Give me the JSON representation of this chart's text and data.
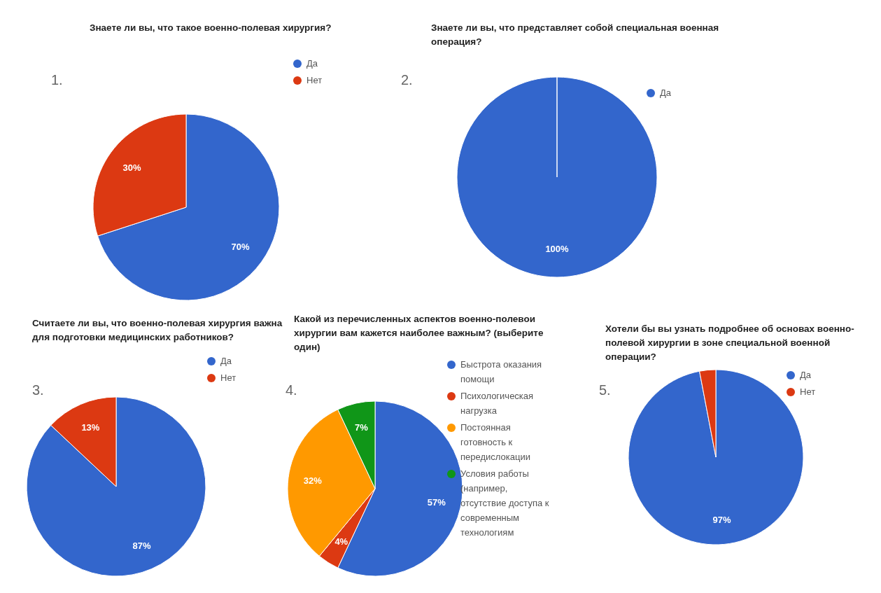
{
  "chart_data": [
    {
      "type": "pie",
      "title": "Знаете ли вы, что такое военно-полевая хирургия?",
      "annotations": [
        "1."
      ],
      "categories": [
        "Да",
        "Нет"
      ],
      "values": [
        70,
        30
      ],
      "colors": [
        "#3366cc",
        "#dc3912"
      ],
      "value_labels": [
        "70%",
        "30%"
      ],
      "legend": "right"
    },
    {
      "type": "pie",
      "title": "Знаете ли вы, что представляет собой специальная военная операция?",
      "annotations": [
        "2."
      ],
      "categories": [
        "Да"
      ],
      "values": [
        100
      ],
      "colors": [
        "#3366cc"
      ],
      "value_labels": [
        "100%"
      ],
      "legend": "right"
    },
    {
      "type": "pie",
      "title": "Считаете ли вы, что военно-полевая хирургия важна для подготовки медицинских работников?",
      "annotations": [
        "3."
      ],
      "categories": [
        "Да",
        "Нет"
      ],
      "values": [
        87,
        13
      ],
      "colors": [
        "#3366cc",
        "#dc3912"
      ],
      "value_labels": [
        "87%",
        "13%"
      ],
      "legend": "right"
    },
    {
      "type": "pie",
      "title": "Какой из перечисленных аспектов военно-полевои хирургии вам кажется наиболее важным? (выберите один)",
      "annotations": [
        "4."
      ],
      "categories": [
        "Быстрота оказания помощи",
        "Психологическая нагрузка",
        "Постоянная готовность к передислокации",
        "Условия работы (например, отсутствие доступа к современным технологиям"
      ],
      "values": [
        57,
        4,
        32,
        7
      ],
      "colors": [
        "#3366cc",
        "#dc3912",
        "#ff9900",
        "#109618"
      ],
      "value_labels": [
        "57%",
        "4%",
        "32%",
        "7%"
      ],
      "legend": "right"
    },
    {
      "type": "pie",
      "title": "Хотели бы вы узнать подробнее об основах военно-полевой хирургии в зоне специальной военной операции?",
      "annotations": [
        "5."
      ],
      "categories": [
        "Да",
        "Нет"
      ],
      "values": [
        97,
        3
      ],
      "colors": [
        "#3366cc",
        "#dc3912"
      ],
      "value_labels": [
        "97%",
        null
      ],
      "legend": "right"
    }
  ]
}
